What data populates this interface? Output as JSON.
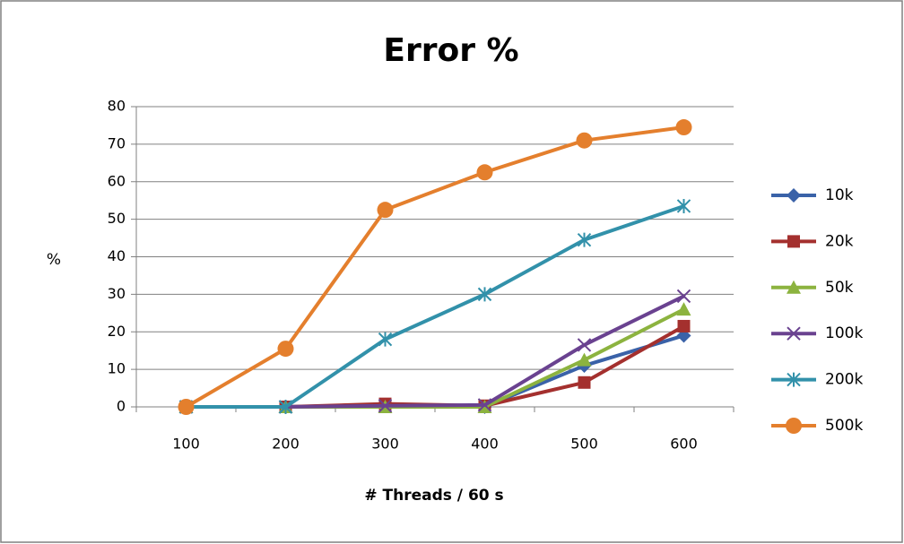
{
  "chart_data": {
    "type": "line",
    "title": "Error %",
    "x_label": "# Threads / 60 s",
    "y_label": "%",
    "categories": [
      "100",
      "200",
      "300",
      "400",
      "500",
      "600"
    ],
    "ylim": [
      0,
      80
    ],
    "yticks": [
      0,
      10,
      20,
      30,
      40,
      50,
      60,
      70,
      80
    ],
    "grid": true,
    "legend": "right",
    "series": [
      {
        "name": "10k",
        "color": "#3a62a8",
        "marker": "diamond",
        "values": [
          0,
          0,
          0.5,
          0,
          11,
          19
        ]
      },
      {
        "name": "20k",
        "color": "#a4302e",
        "marker": "square",
        "values": [
          0,
          0,
          0.8,
          0.3,
          6.5,
          21.5
        ]
      },
      {
        "name": "50k",
        "color": "#8cb33f",
        "marker": "triangle",
        "values": [
          0,
          0,
          0,
          0,
          12.5,
          26
        ]
      },
      {
        "name": "100k",
        "color": "#6a4290",
        "marker": "x",
        "values": [
          0,
          0,
          0.3,
          0.5,
          16.5,
          29.5
        ]
      },
      {
        "name": "200k",
        "color": "#3291aa",
        "marker": "star",
        "values": [
          0,
          0,
          18,
          30,
          44.5,
          53.5
        ]
      },
      {
        "name": "500k",
        "color": "#e47f2d",
        "marker": "circle",
        "values": [
          0,
          15.5,
          52.5,
          62.5,
          71,
          74.5
        ]
      }
    ]
  }
}
